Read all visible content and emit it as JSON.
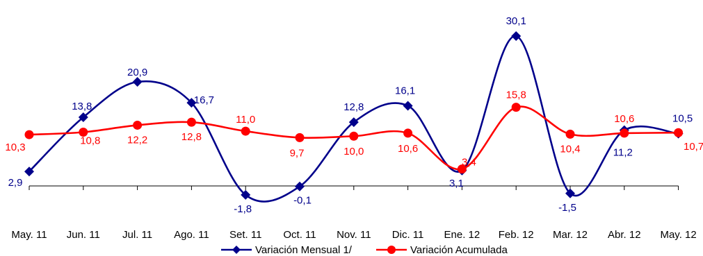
{
  "chart_data": {
    "type": "line",
    "categories": [
      "May. 11",
      "Jun. 11",
      "Jul. 11",
      "Ago. 11",
      "Set. 11",
      "Oct. 11",
      "Nov. 11",
      "Dic. 11",
      "Ene. 12",
      "Feb. 12",
      "Mar. 12",
      "Abr. 12",
      "May. 12"
    ],
    "series": [
      {
        "name": "Variación Mensual 1/",
        "color": "#00008B",
        "marker": "diamond",
        "values": [
          2.9,
          13.8,
          20.9,
          16.7,
          -1.8,
          -0.1,
          12.8,
          16.1,
          3.1,
          30.1,
          -1.5,
          11.2,
          10.5
        ],
        "labels": [
          "2,9",
          "13,8",
          "20,9",
          "16,7",
          "-1,8",
          "-0,1",
          "12,8",
          "16,1",
          "3,1",
          "30,1",
          "-1,5",
          "11,2",
          "10,5"
        ]
      },
      {
        "name": "Variación Acumulada",
        "color": "#FF0000",
        "marker": "circle",
        "values": [
          10.3,
          10.8,
          12.2,
          12.8,
          11.0,
          9.7,
          10.0,
          10.6,
          3.4,
          15.8,
          10.4,
          10.6,
          10.7
        ],
        "labels": [
          "10,3",
          "10,8",
          "12,2",
          "12,8",
          "11,0",
          "9,7",
          "10,0",
          "10,6",
          "3,4",
          "15,8",
          "10,4",
          "10,6",
          "10,7"
        ]
      }
    ],
    "smooth": true,
    "grid": false,
    "legend_position": "bottom",
    "title": "",
    "xlabel": "",
    "ylabel": ""
  }
}
